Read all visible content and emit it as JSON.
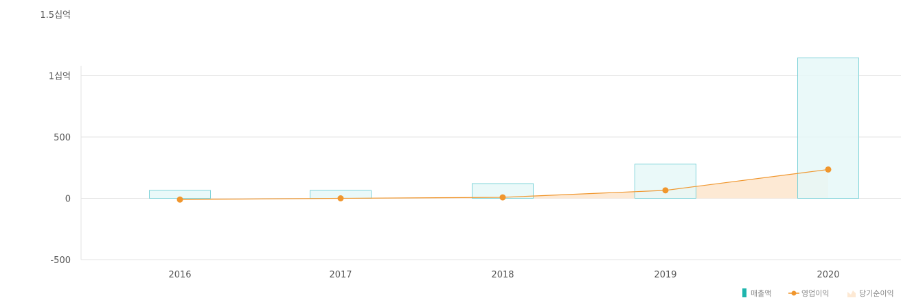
{
  "chart_data": {
    "type": "bar",
    "categories": [
      "2016",
      "2017",
      "2018",
      "2019",
      "2020"
    ],
    "ylim": [
      -500,
      1500
    ],
    "y_ticks": [
      {
        "value": 1500,
        "label": "1.5십억"
      },
      {
        "value": 1000,
        "label": "1십억"
      },
      {
        "value": 500,
        "label": "500"
      },
      {
        "value": 0,
        "label": "0"
      },
      {
        "value": -500,
        "label": "-500"
      }
    ],
    "grid": true,
    "legend_position": "bottom-right",
    "series": [
      {
        "name": "매출액",
        "type": "bar",
        "color": "#1fb5ad",
        "fill": "#e6f8f8",
        "stroke": "#7fd3d9",
        "values": [
          65,
          65,
          120,
          280,
          1145
        ]
      },
      {
        "name": "영업이익",
        "type": "line",
        "color": "#f0962d",
        "values": [
          -10,
          0,
          8,
          65,
          235
        ]
      },
      {
        "name": "당기순이익",
        "type": "area",
        "color": "#fde9d4",
        "values": [
          -10,
          0,
          8,
          65,
          235
        ]
      }
    ]
  }
}
